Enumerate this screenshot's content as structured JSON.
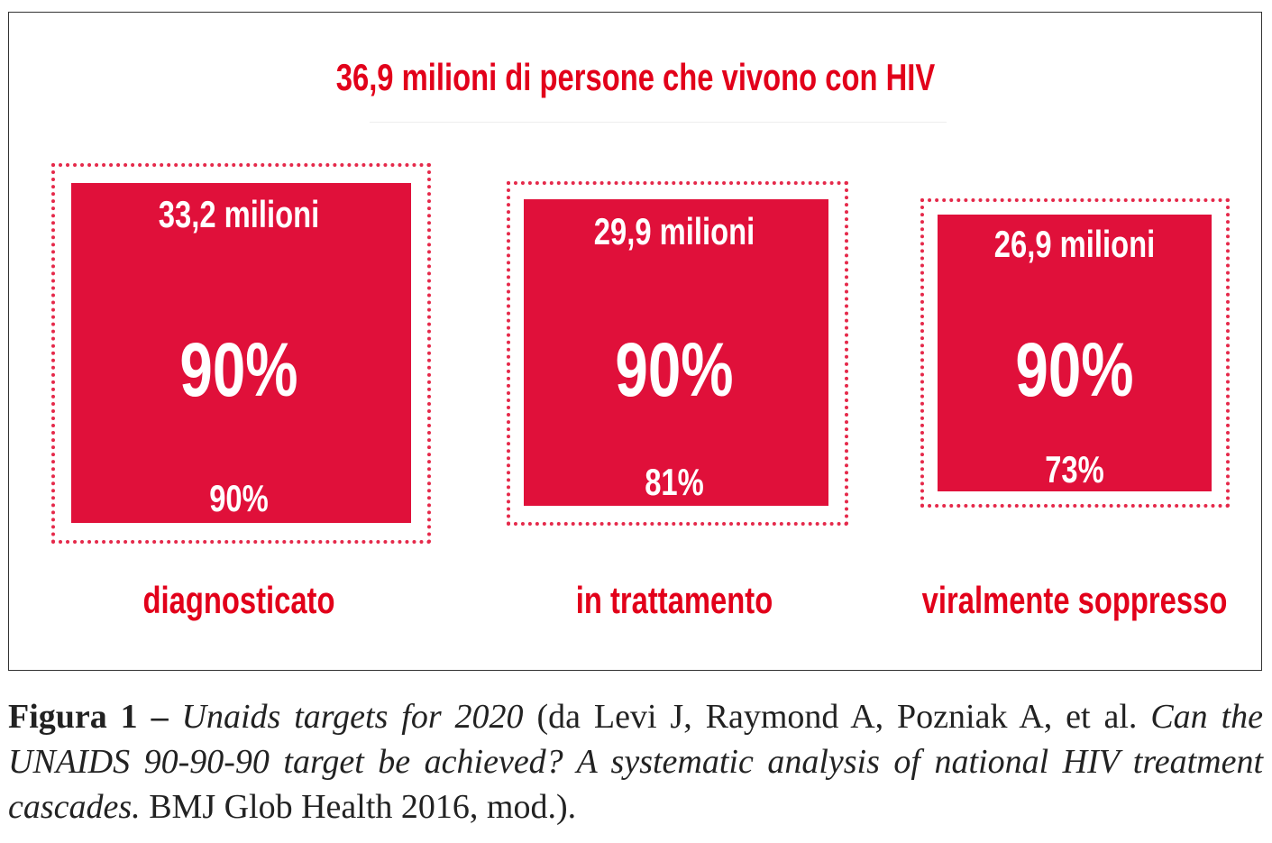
{
  "figure": {
    "title": "36,9 milioni di persone che vivono con HIV",
    "colors": {
      "accent_red": "#e2001a",
      "box_red": "#e0103a"
    },
    "boxes": [
      {
        "count": "33,2 milioni",
        "target": "90%",
        "actual": "90%",
        "label": "diagnosticato"
      },
      {
        "count": "29,9 milioni",
        "target": "90%",
        "actual": "81%",
        "label": "in trattamento"
      },
      {
        "count": "26,9 milioni",
        "target": "90%",
        "actual": "73%",
        "label": "viralmente soppresso"
      }
    ]
  },
  "caption": {
    "label": "Figura 1 –",
    "title": "Unaids targets for 2020",
    "open": " (da Levi J, Raymond A, Pozniak A, et al. ",
    "article": "Can the UNAIDS 90-90-90 target be achieved? A systematic analysis of national HIV treatment cascades.",
    "source": " BMJ Glob Health 2016, mod.)."
  }
}
